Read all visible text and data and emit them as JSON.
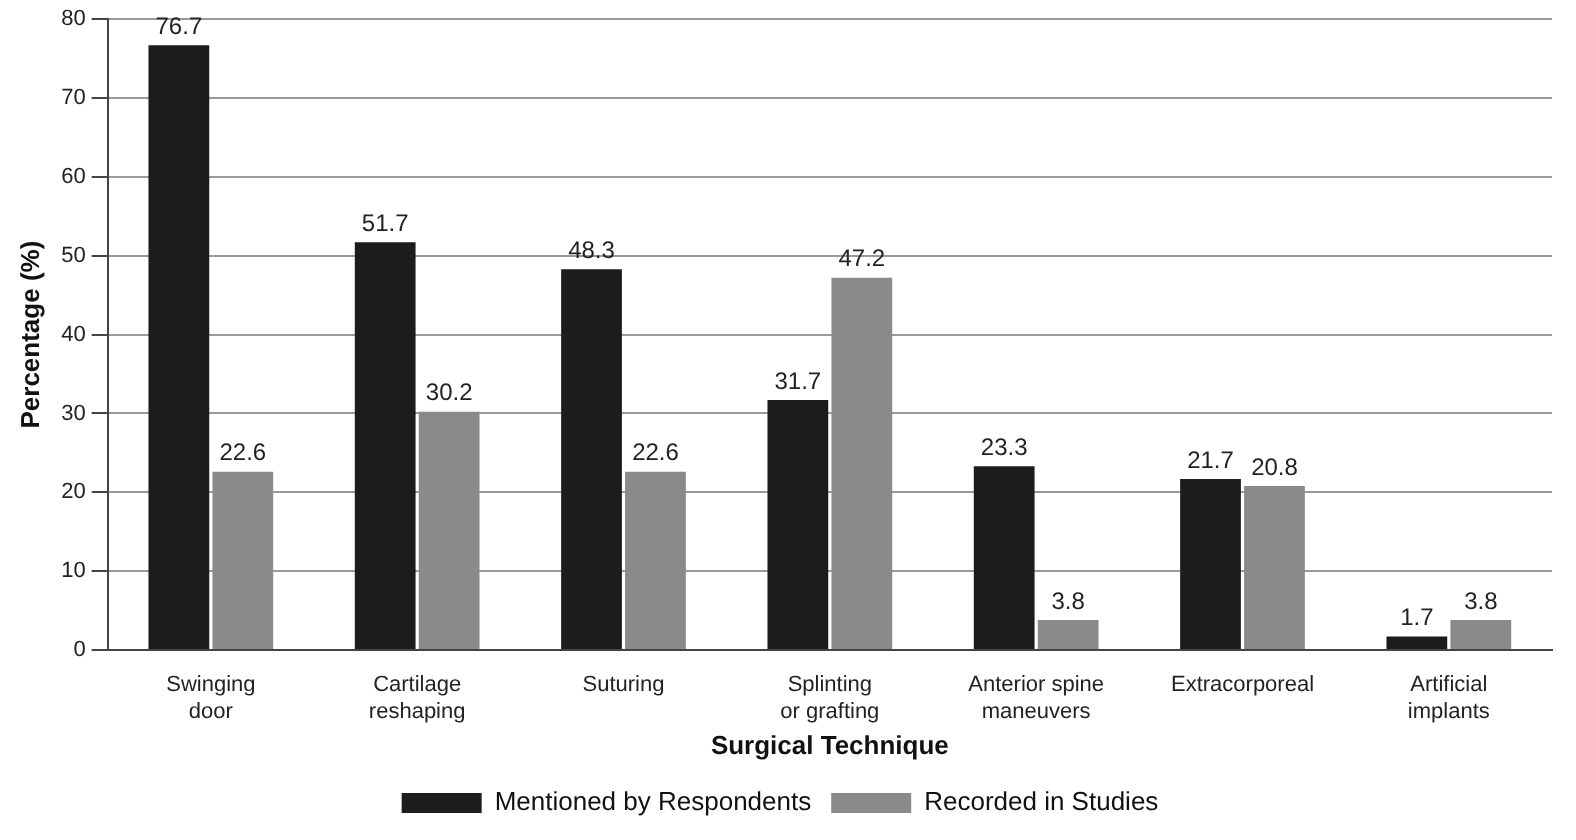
{
  "chart_data": {
    "type": "bar",
    "xlabel": "Surgical Technique",
    "ylabel": "Percentage (%)",
    "categories": [
      "Swinging door",
      "Cartilage reshaping",
      "Suturing",
      "Splinting or grafting",
      "Anterior spine maneuvers",
      "Extracorporeal",
      "Artificial implants"
    ],
    "series": [
      {
        "name": "Mentioned by Respondents",
        "color": "#1c1c1c",
        "values": [
          76.7,
          51.7,
          48.3,
          31.7,
          23.3,
          21.7,
          1.7
        ]
      },
      {
        "name": "Recorded in Studies",
        "color": "#8a8a8a",
        "values": [
          22.6,
          30.2,
          22.6,
          47.2,
          3.8,
          20.8,
          3.8
        ]
      }
    ],
    "ylim": [
      0,
      80
    ],
    "yticks": [
      0,
      10,
      20,
      30,
      40,
      50,
      60,
      70,
      80
    ],
    "grid": "y",
    "legend": "bottom",
    "data_labels": true
  }
}
